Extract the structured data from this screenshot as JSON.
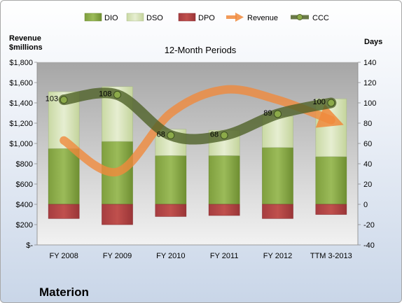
{
  "chart_data": {
    "type": "bar",
    "title": "12-Month Periods",
    "company": "Materion",
    "categories": [
      "FY 2008",
      "FY 2009",
      "FY 2010",
      "FY 2011",
      "FY 2012",
      "TTM 3-2013"
    ],
    "legend": [
      "DIO",
      "DSO",
      "DPO",
      "Revenue",
      "CCC"
    ],
    "legend_position": "top",
    "y_left": {
      "label": [
        "Revenue",
        "$millions"
      ],
      "range": [
        0,
        1800
      ],
      "ticks": [
        "$-",
        "$200",
        "$400",
        "$600",
        "$800",
        "$1,000",
        "$1,200",
        "$1,400",
        "$1,600",
        "$1,800"
      ]
    },
    "y_right": {
      "label": "Days",
      "range": [
        -40,
        140
      ],
      "ticks": [
        "-40",
        "-20",
        "0",
        "20",
        "40",
        "60",
        "80",
        "100",
        "120",
        "140"
      ]
    },
    "series": [
      {
        "name": "DIO",
        "axis": "right",
        "values": [
          55,
          62,
          48,
          48,
          56,
          47
        ],
        "color": "#7a9a3c"
      },
      {
        "name": "DSO",
        "axis": "right",
        "values": [
          56,
          54,
          26,
          25,
          31,
          57
        ],
        "color": "#d7e4bd"
      },
      {
        "name": "DPO",
        "axis": "right",
        "values": [
          -14,
          -20,
          -12,
          -11,
          -14,
          -10
        ],
        "color": "#b2484b"
      },
      {
        "name": "Revenue",
        "axis": "left",
        "values": [
          1030,
          720,
          1300,
          1530,
          1430,
          1230
        ],
        "color": "#f08a3c"
      },
      {
        "name": "CCC",
        "axis": "right",
        "values": [
          103,
          108,
          68,
          68,
          89,
          100
        ],
        "color": "#4f6228",
        "labels": [
          "103",
          "108",
          "68",
          "68",
          "89",
          "100"
        ]
      }
    ],
    "grid": false
  }
}
